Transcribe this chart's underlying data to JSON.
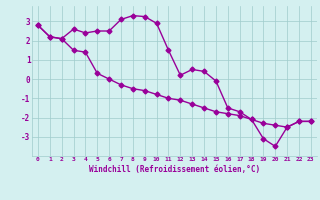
{
  "line1_x": [
    0,
    1,
    2,
    3,
    4,
    5,
    6,
    7,
    8,
    9,
    10,
    11,
    12,
    13,
    14,
    15,
    16,
    17,
    18,
    19,
    20,
    21,
    22,
    23
  ],
  "line1_y": [
    2.8,
    2.2,
    2.1,
    2.6,
    2.4,
    2.5,
    2.5,
    3.1,
    3.3,
    3.25,
    2.9,
    1.5,
    0.2,
    0.5,
    0.4,
    -0.1,
    -1.5,
    -1.7,
    -2.1,
    -3.1,
    -3.5,
    -2.5,
    -2.2,
    -2.2
  ],
  "line2_x": [
    0,
    1,
    2,
    3,
    4,
    5,
    6,
    7,
    8,
    9,
    10,
    11,
    12,
    13,
    14,
    15,
    16,
    17,
    18,
    19,
    20,
    21,
    22,
    23
  ],
  "line2_y": [
    2.8,
    2.2,
    2.1,
    1.5,
    1.4,
    0.3,
    0.0,
    -0.3,
    -0.5,
    -0.6,
    -0.8,
    -1.0,
    -1.1,
    -1.3,
    -1.5,
    -1.7,
    -1.8,
    -1.9,
    -2.1,
    -2.3,
    -2.4,
    -2.5,
    -2.2,
    -2.2
  ],
  "color": "#990099",
  "bg_color": "#d4f0f0",
  "grid_color": "#a0cccc",
  "xlabel": "Windchill (Refroidissement éolien,°C)",
  "xlim": [
    -0.5,
    23.5
  ],
  "ylim": [
    -4.0,
    3.8
  ],
  "yticks": [
    -3,
    -2,
    -1,
    0,
    1,
    2,
    3
  ],
  "xticks": [
    0,
    1,
    2,
    3,
    4,
    5,
    6,
    7,
    8,
    9,
    10,
    11,
    12,
    13,
    14,
    15,
    16,
    17,
    18,
    19,
    20,
    21,
    22,
    23
  ],
  "marker": "D",
  "marker_size": 2.5,
  "linewidth": 1.0
}
